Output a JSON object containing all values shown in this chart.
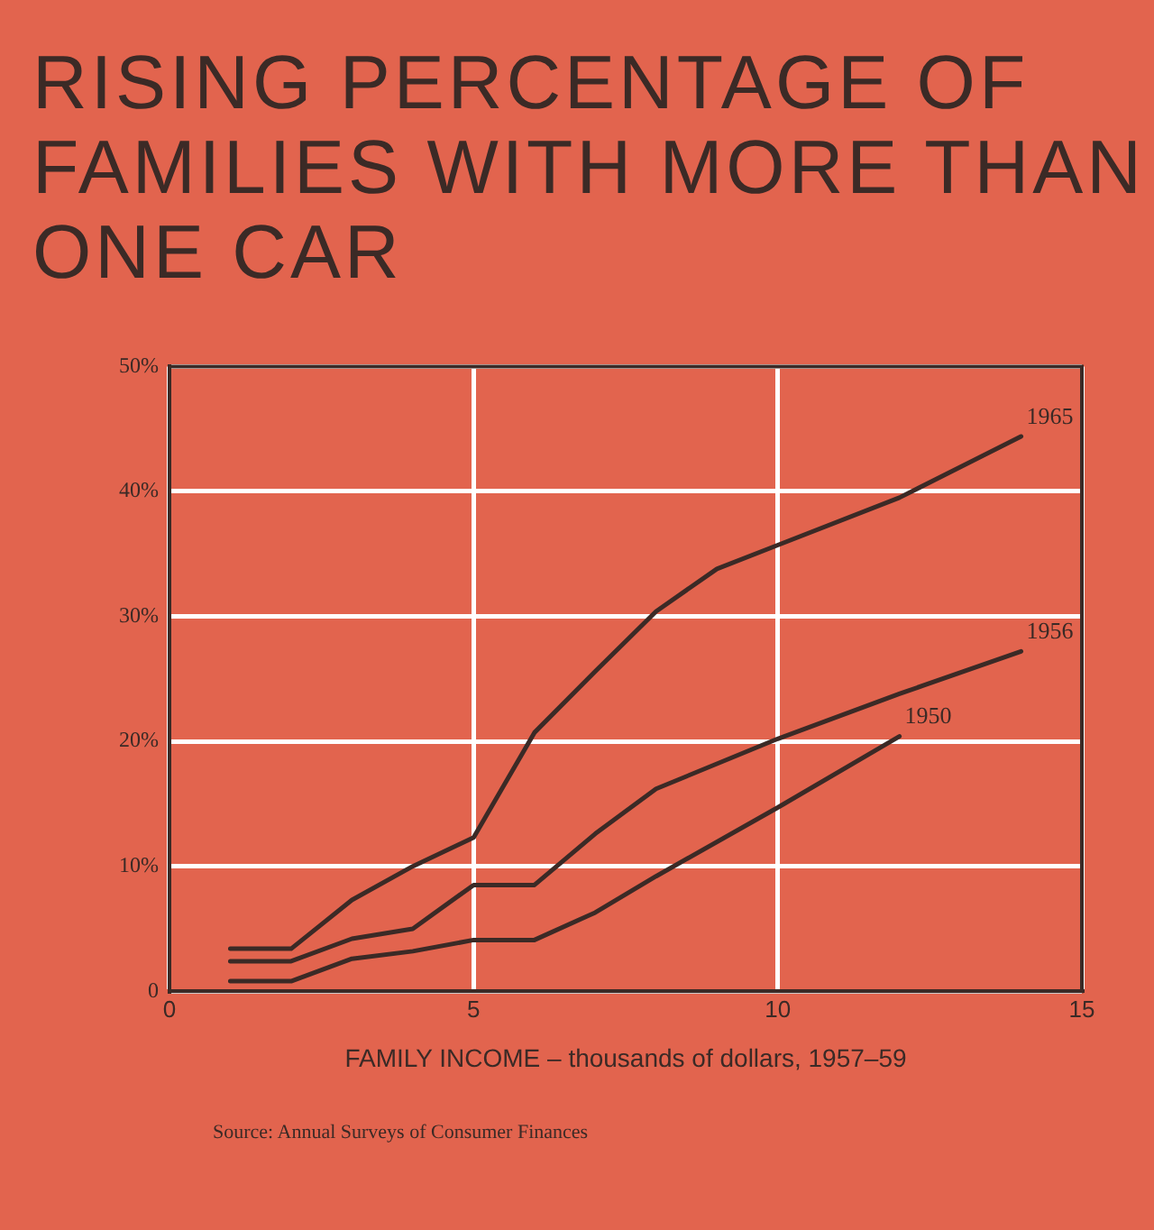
{
  "chart_data": {
    "type": "line",
    "title": "RISING PERCENTAGE OF FAMILIES WITH MORE THAN ONE CAR",
    "xlabel": "FAMILY INCOME – thousands of dollars, 1957–59",
    "annotations": [
      "Source: Annual Surveys of Consumer Finances"
    ],
    "xlim": [
      0,
      15
    ],
    "xticks": [
      0,
      5,
      10,
      15
    ],
    "ylim": [
      0,
      50
    ],
    "yticks": [
      {
        "value": 0,
        "label": "0"
      },
      {
        "value": 10,
        "label": "10%"
      },
      {
        "value": 20,
        "label": "20%"
      },
      {
        "value": 30,
        "label": "30%"
      },
      {
        "value": 40,
        "label": "40%"
      },
      {
        "value": 50,
        "label": "50%"
      }
    ],
    "grid": true,
    "legend": false,
    "marker": "none",
    "line_style": "solid",
    "series": [
      {
        "name": "1965",
        "color": "#3b2a26",
        "x": [
          1,
          2,
          3,
          4,
          5,
          6,
          7,
          8,
          9,
          10,
          12,
          14
        ],
        "values": [
          3.4,
          3.4,
          7.3,
          10,
          12.3,
          20.7,
          25.6,
          30.4,
          33.8,
          35.7,
          39.5,
          44.4
        ]
      },
      {
        "name": "1956",
        "color": "#3b2a26",
        "x": [
          1,
          2,
          3,
          4,
          5,
          6,
          7,
          8,
          10,
          12,
          14
        ],
        "values": [
          2.4,
          2.4,
          4.2,
          5,
          8.5,
          8.5,
          12.6,
          16.2,
          20.2,
          23.8,
          27.2
        ]
      },
      {
        "name": "1950",
        "color": "#3b2a26",
        "x": [
          1,
          2,
          3,
          4,
          5,
          6,
          7,
          8,
          10,
          12
        ],
        "values": [
          0.8,
          0.8,
          2.6,
          3.2,
          4.1,
          4.1,
          6.3,
          9.2,
          14.7,
          20.4
        ]
      }
    ]
  }
}
